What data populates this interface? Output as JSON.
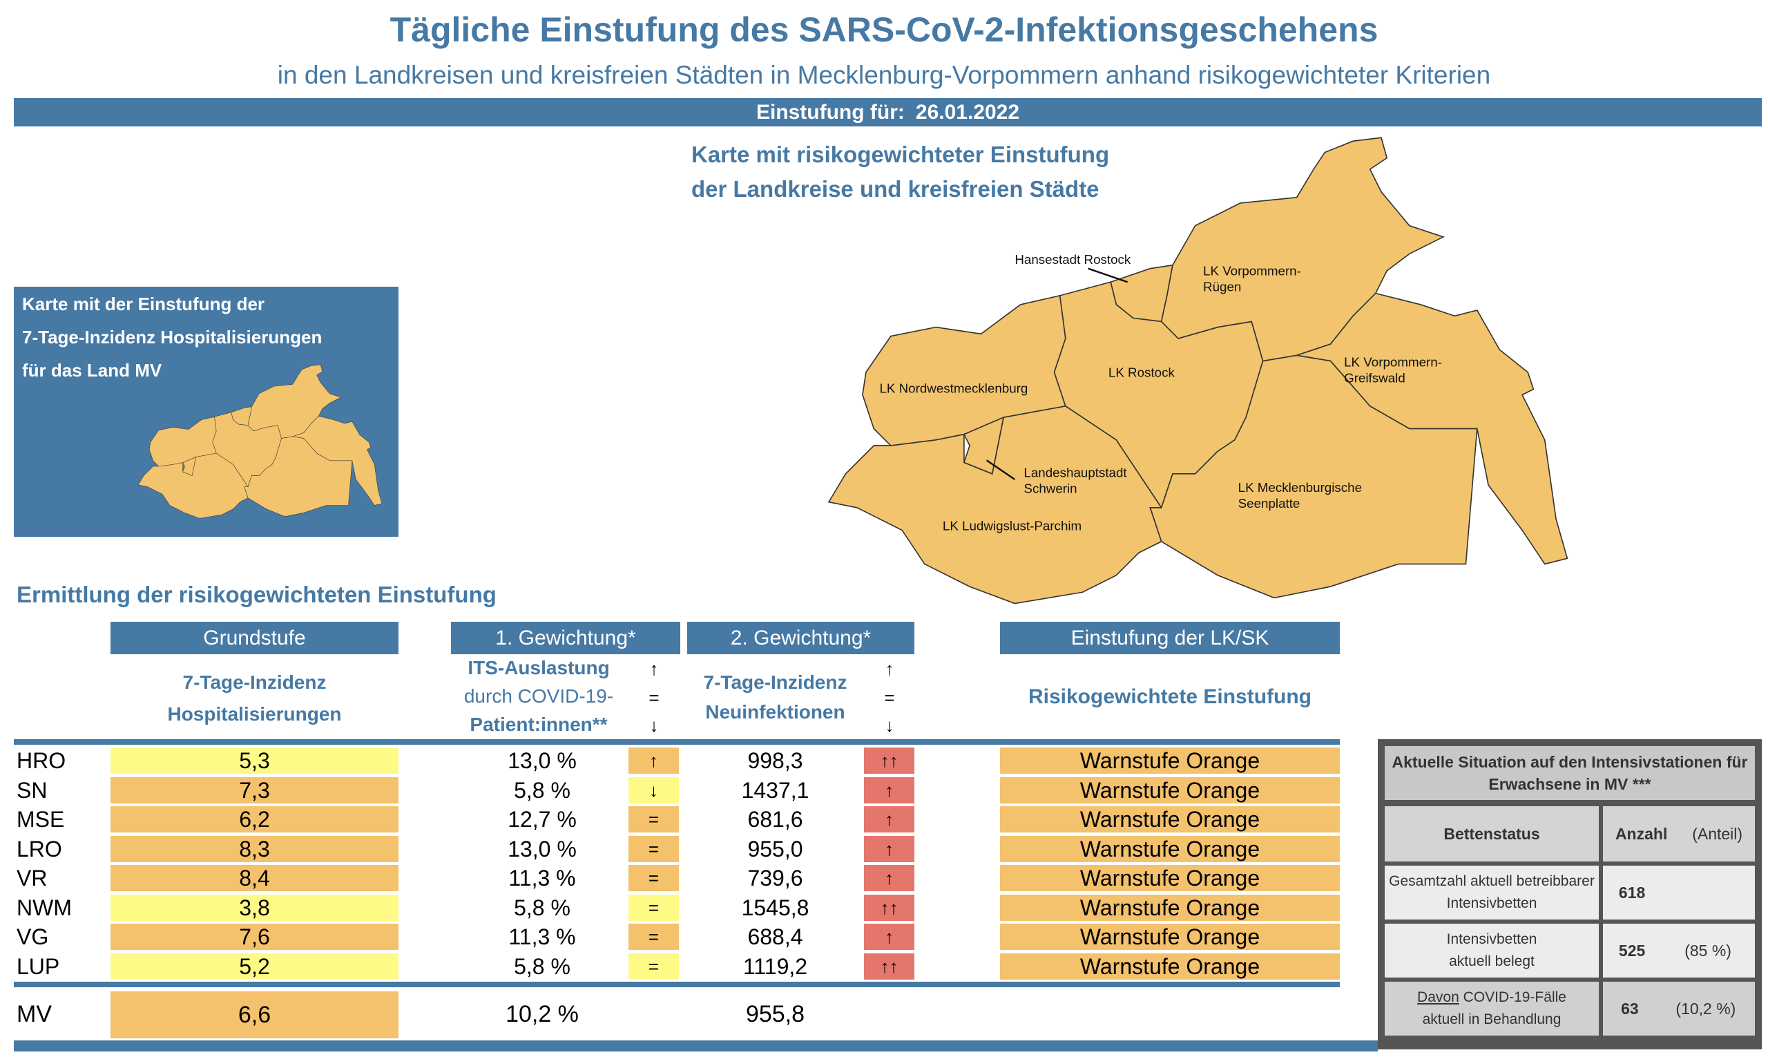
{
  "header": {
    "title": "Tägliche Einstufung des SARS-CoV-2-Infektionsgeschehens",
    "subtitle": "in den Landkreisen und kreisfreien Städten in Mecklenburg-Vorpommern anhand risikogewichteter Kriterien",
    "date_label": "Einstufung für:",
    "date": "26.01.2022"
  },
  "map": {
    "title_line1": "Karte mit risikogewichteter Einstufung",
    "title_line2": "der Landkreise und kreisfreien Städte",
    "labels": {
      "hro": "Hansestadt Rostock",
      "vr1": "LK Vorpommern-",
      "vr2": "Rügen",
      "lro": "LK Rostock",
      "nwm": "LK Nordwestmecklenburg",
      "vg1": "LK Vorpommern-",
      "vg2": "Greifswald",
      "sn1": "Landeshauptstadt",
      "sn2": "Schwerin",
      "mse1": "LK Mecklenburgische",
      "mse2": "Seenplatte",
      "lup": "LK Ludwigslust-Parchim"
    },
    "fill": "#f2c46d"
  },
  "state_map": {
    "line1": "Karte mit der Einstufung der",
    "line2": "7-Tage-Inzidenz Hospitalisierungen",
    "line3": "für das Land MV"
  },
  "table": {
    "section_title": "Ermittlung der risikogewichteten Einstufung",
    "headers": {
      "grundstufe": "Grundstufe",
      "gew1": "1. Gewichtung*",
      "gew2": "2. Gewichtung*",
      "einstufung": "Einstufung der LK/SK"
    },
    "subheaders": {
      "grund1": "7-Tage-Inzidenz",
      "grund2": "Hospitalisierungen",
      "its1": "ITS-Auslastung",
      "its2": "durch COVID-19-",
      "its3": "Patient:innen**",
      "neu1": "7-Tage-Inzidenz",
      "neu2": "Neuinfektionen",
      "risk": "Risikogewichtete Einstufung",
      "trend_up": "↑",
      "trend_eq": "=",
      "trend_down": "↓"
    },
    "colors": {
      "yellow": "#fdfb86",
      "orange": "#f4c16c",
      "red": "#e5766b",
      "blue": "#4679a4"
    },
    "rows": [
      {
        "region": "HRO",
        "hosp": "5,3",
        "hosp_level": "yellow",
        "its": "13,0 %",
        "its_trend": "↑",
        "its_level": "orange",
        "inz": "998,3",
        "inz_trend": "↑↑",
        "stufe": "Warnstufe Orange"
      },
      {
        "region": "SN",
        "hosp": "7,3",
        "hosp_level": "orange",
        "its": "5,8 %",
        "its_trend": "↓",
        "its_level": "yellow",
        "inz": "1437,1",
        "inz_trend": "↑",
        "stufe": "Warnstufe Orange"
      },
      {
        "region": "MSE",
        "hosp": "6,2",
        "hosp_level": "orange",
        "its": "12,7 %",
        "its_trend": "=",
        "its_level": "orange",
        "inz": "681,6",
        "inz_trend": "↑",
        "stufe": "Warnstufe Orange"
      },
      {
        "region": "LRO",
        "hosp": "8,3",
        "hosp_level": "orange",
        "its": "13,0 %",
        "its_trend": "=",
        "its_level": "orange",
        "inz": "955,0",
        "inz_trend": "↑",
        "stufe": "Warnstufe Orange"
      },
      {
        "region": "VR",
        "hosp": "8,4",
        "hosp_level": "orange",
        "its": "11,3 %",
        "its_trend": "=",
        "its_level": "orange",
        "inz": "739,6",
        "inz_trend": "↑",
        "stufe": "Warnstufe Orange"
      },
      {
        "region": "NWM",
        "hosp": "3,8",
        "hosp_level": "yellow",
        "its": "5,8 %",
        "its_trend": "=",
        "its_level": "yellow",
        "inz": "1545,8",
        "inz_trend": "↑↑",
        "stufe": "Warnstufe Orange"
      },
      {
        "region": "VG",
        "hosp": "7,6",
        "hosp_level": "orange",
        "its": "11,3 %",
        "its_trend": "=",
        "its_level": "orange",
        "inz": "688,4",
        "inz_trend": "↑",
        "stufe": "Warnstufe Orange"
      },
      {
        "region": "LUP",
        "hosp": "5,2",
        "hosp_level": "yellow",
        "its": "5,8 %",
        "its_trend": "=",
        "its_level": "yellow",
        "inz": "1119,2",
        "inz_trend": "↑↑",
        "stufe": "Warnstufe Orange"
      }
    ],
    "total": {
      "region": "MV",
      "hosp": "6,6",
      "hosp_level": "orange",
      "its": "10,2 %",
      "inz": "955,8"
    }
  },
  "icu": {
    "title": "Aktuelle Situation auf den Intensivstationen für Erwachsene in MV ***",
    "col_status": "Bettenstatus",
    "col_count": "Anzahl",
    "col_share": "(Anteil)",
    "rows": [
      {
        "label1": "Gesamtzahl aktuell betreibbarer",
        "label2": "Intensivbetten",
        "count": "618",
        "share": ""
      },
      {
        "label1": "Intensivbetten",
        "label2": "aktuell belegt",
        "count": "525",
        "share": "(85 %)"
      },
      {
        "label_u": "Davon",
        "label1": " COVID-19-Fälle",
        "label2": "aktuell in Behandlung",
        "count": "63",
        "share": "(10,2 %)"
      }
    ]
  }
}
